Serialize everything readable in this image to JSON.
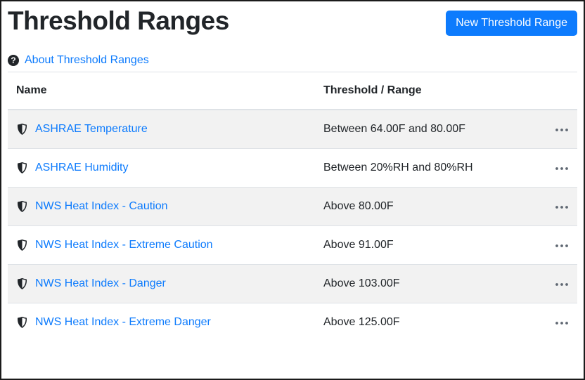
{
  "page": {
    "title": "Threshold Ranges"
  },
  "toolbar": {
    "new_button_label": "New Threshold Range"
  },
  "about_link": {
    "label": "About Threshold Ranges",
    "icon": "question-circle-icon",
    "icon_glyph": "?"
  },
  "table": {
    "columns": {
      "name": "Name",
      "range": "Threshold / Range"
    },
    "row_icon": "shield-half-icon",
    "actions_icon": "ellipsis-icon",
    "rows": [
      {
        "name": "ASHRAE Temperature",
        "range": "Between 64.00F and 80.00F"
      },
      {
        "name": "ASHRAE Humidity",
        "range": "Between 20%RH and 80%RH"
      },
      {
        "name": "NWS Heat Index - Caution",
        "range": "Above 80.00F"
      },
      {
        "name": "NWS Heat Index - Extreme Caution",
        "range": "Above 91.00F"
      },
      {
        "name": "NWS Heat Index - Danger",
        "range": "Above 103.00F"
      },
      {
        "name": "NWS Heat Index - Extreme Danger",
        "range": "Above 125.00F"
      }
    ]
  },
  "colors": {
    "primary": "#0d7bfd",
    "link": "#0d7bfd",
    "stripe": "#f2f2f2",
    "table_border": "#dee2e6",
    "text": "#212529",
    "icon_dark": "#212529",
    "ellipsis": "#5f6772",
    "window_border": "#1b1b1b"
  }
}
